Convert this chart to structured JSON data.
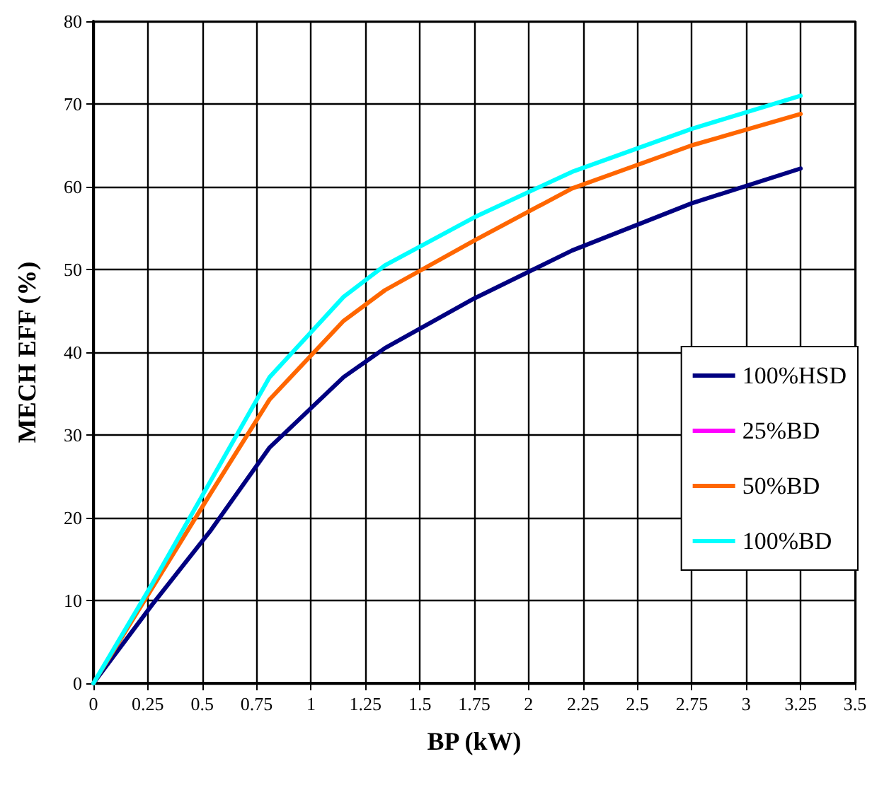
{
  "chart_data": {
    "type": "line",
    "xlabel": "BP (kW)",
    "ylabel": "MECH EFF (%)",
    "x": [
      0,
      0.27,
      0.54,
      0.81,
      1.15,
      1.34,
      1.75,
      2.2,
      2.75,
      3.25
    ],
    "series": [
      {
        "name": "100%HSD",
        "color": "#000080",
        "values": [
          0,
          9.5,
          18.5,
          28.5,
          37,
          40.5,
          46.5,
          52.3,
          58,
          62.2
        ]
      },
      {
        "name": "25%BD",
        "color": "#ff00ff",
        "values": [
          null,
          null,
          null,
          null,
          null,
          null,
          null,
          null,
          null,
          null
        ]
      },
      {
        "name": "50%BD",
        "color": "#ff6600",
        "values": [
          0,
          11.5,
          23,
          34.3,
          43.8,
          47.5,
          53.5,
          59.8,
          65,
          68.8
        ]
      },
      {
        "name": "100%BD",
        "color": "#00ffff",
        "values": [
          0,
          12,
          24.5,
          37,
          46.7,
          50.5,
          56.3,
          61.8,
          67,
          71
        ]
      }
    ],
    "xlim": [
      0,
      3.5
    ],
    "xticks": [
      0,
      0.25,
      0.5,
      0.75,
      1,
      1.25,
      1.5,
      1.75,
      2,
      2.25,
      2.5,
      2.75,
      3,
      3.25,
      3.5
    ],
    "ylim": [
      0,
      80
    ],
    "yticks": [
      0,
      10,
      20,
      30,
      40,
      50,
      60,
      70,
      80
    ],
    "grid": true,
    "legend": "right",
    "marker": "none",
    "line_style": "solid"
  }
}
